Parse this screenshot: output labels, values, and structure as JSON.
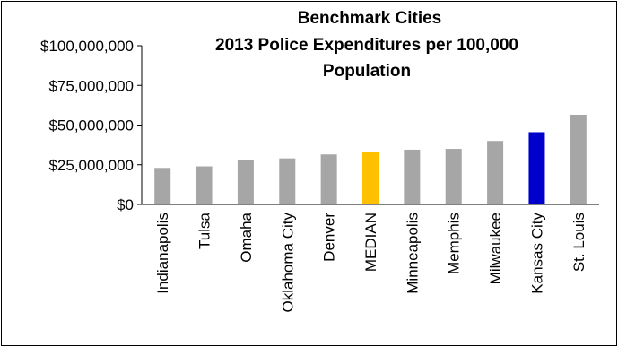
{
  "chart_data": {
    "type": "bar",
    "title": [
      "Benchmark Cities",
      "2013 Police Expenditures per 100,000",
      "Population"
    ],
    "xlabel": "",
    "ylabel": "",
    "ylim": [
      0,
      100000000
    ],
    "yticks": [
      0,
      25000000,
      50000000,
      75000000,
      100000000
    ],
    "ytick_labels": [
      "$0",
      "$25,000,000",
      "$50,000,000",
      "$75,000,000",
      "$100,000,000"
    ],
    "grid": false,
    "legend": "none",
    "categories": [
      "Indianapolis",
      "Tulsa",
      "Omaha",
      "Oklahoma City",
      "Denver",
      "MEDIAN",
      "Minneapolis",
      "Memphis",
      "Milwaukee",
      "Kansas City",
      "St. Louis"
    ],
    "values": [
      23000000,
      24000000,
      28000000,
      29000000,
      31500000,
      33000000,
      34500000,
      35000000,
      40000000,
      45500000,
      56500000
    ],
    "colors": [
      "#a6a6a6",
      "#a6a6a6",
      "#a6a6a6",
      "#a6a6a6",
      "#a6a6a6",
      "#ffc000",
      "#a6a6a6",
      "#a6a6a6",
      "#a6a6a6",
      "#0000cc",
      "#a6a6a6"
    ]
  }
}
